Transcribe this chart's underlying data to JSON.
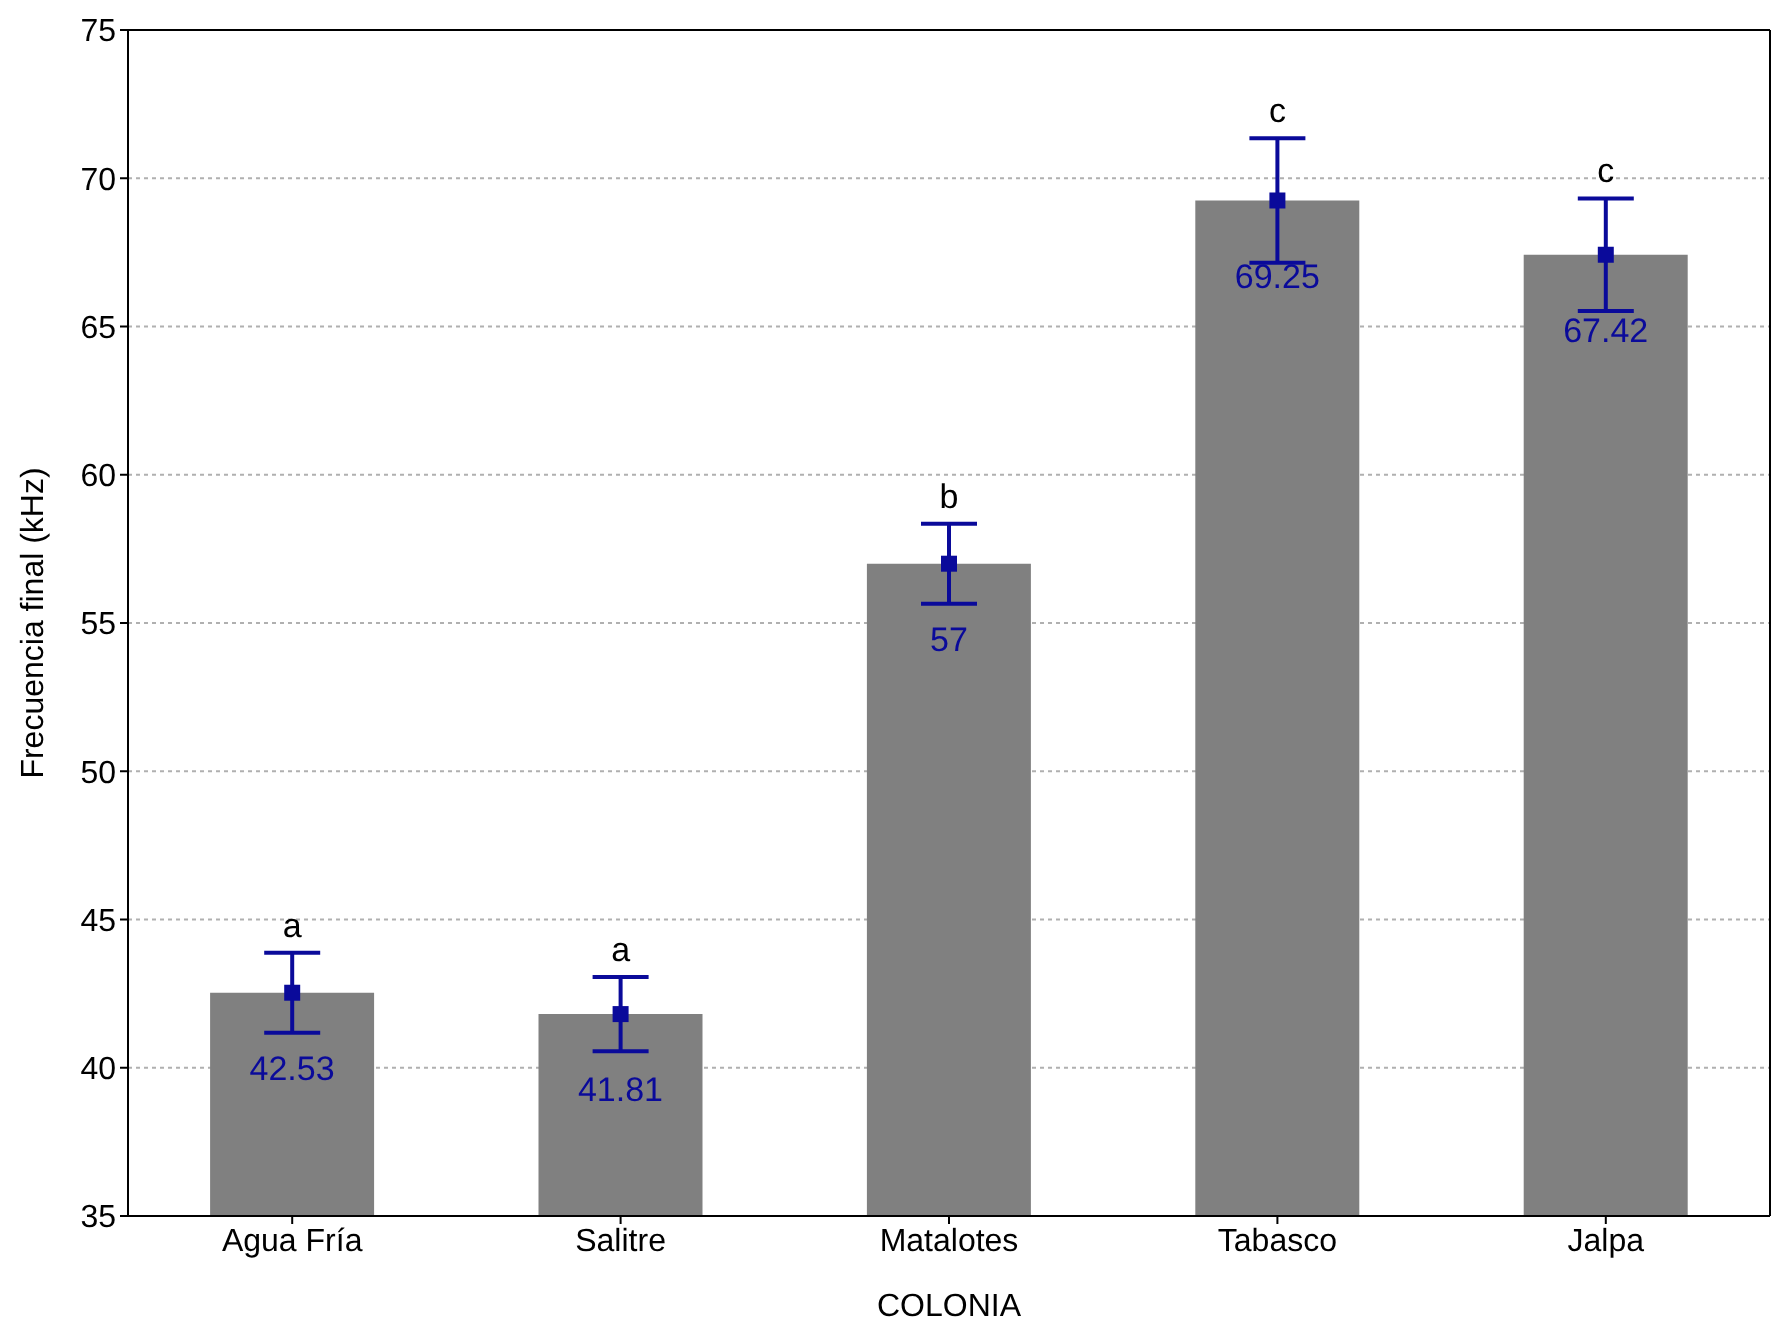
{
  "chart_data": {
    "type": "bar",
    "xlabel": "COLONIA",
    "ylabel": "Frecuencia final (kHz)",
    "categories": [
      "Agua Fría",
      "Salitre",
      "Matalotes",
      "Tabasco",
      "Jalpa"
    ],
    "series": [
      {
        "color": "#808080",
        "values": [
          42.53,
          41.81,
          57,
          69.25,
          67.42
        ],
        "value_labels": [
          "42.53",
          "41.81",
          "57",
          "69.25",
          "67.42"
        ]
      },
      {
        "type": "scatter",
        "color": "#0a0a9a",
        "values": [
          42.53,
          41.81,
          57,
          69.25,
          67.42
        ],
        "x": [
          "Agua Fría",
          "Salitre",
          "Matalotes",
          "Tabasco",
          "Jalpa"
        ],
        "errors": [
          1.35,
          1.25,
          1.35,
          2.1,
          1.9
        ]
      }
    ],
    "marker": "square",
    "ylim": [
      35,
      75
    ],
    "yticks": [
      35,
      40,
      45,
      50,
      55,
      60,
      65,
      70,
      75
    ],
    "grid": "y",
    "annotations": [
      {
        "text": "a",
        "x": "Agua Fría",
        "y": 43.88
      },
      {
        "text": "a",
        "x": "Salitre",
        "y": 43.06
      },
      {
        "text": "b",
        "x": "Matalotes",
        "y": 58.35
      },
      {
        "text": "c",
        "x": "Tabasco",
        "y": 71.35
      },
      {
        "text": "c",
        "x": "Jalpa",
        "y": 69.32
      }
    ]
  }
}
